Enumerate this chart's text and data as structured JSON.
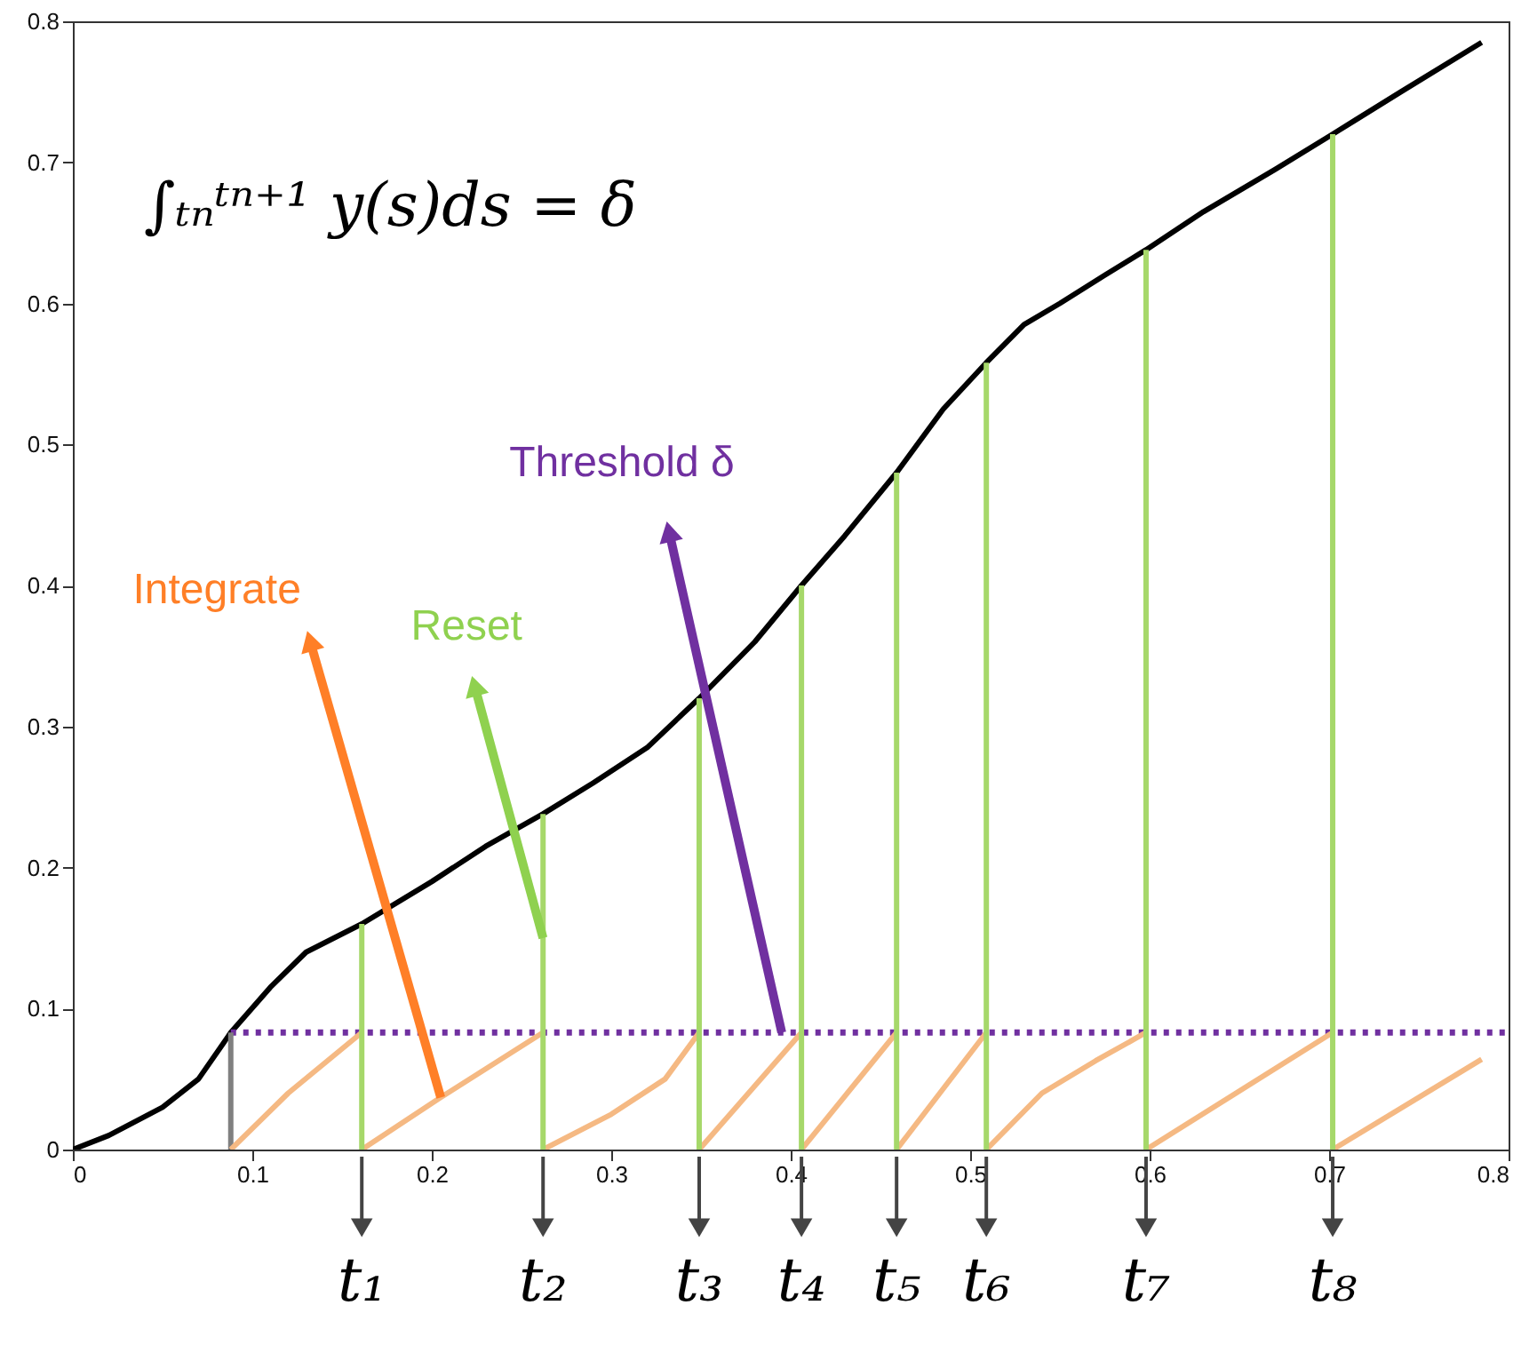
{
  "chart_data": {
    "type": "line",
    "xlim": [
      0,
      0.8
    ],
    "ylim": [
      0,
      0.8
    ],
    "xticks": [
      0,
      0.1,
      0.2,
      0.3,
      0.4,
      0.5,
      0.6,
      0.7,
      0.8
    ],
    "yticks": [
      0,
      0.1,
      0.2,
      0.3,
      0.4,
      0.5,
      0.6,
      0.7,
      0.8
    ],
    "grid": false,
    "marker": "none",
    "series": [
      {
        "color": "#000000",
        "x": [
          0,
          0.02,
          0.05,
          0.07,
          0.088,
          0.11,
          0.13,
          0.161,
          0.2,
          0.23,
          0.262,
          0.29,
          0.32,
          0.349,
          0.38,
          0.406,
          0.43,
          0.459,
          0.485,
          0.509,
          0.53,
          0.55,
          0.575,
          0.598,
          0.63,
          0.67,
          0.702,
          0.74,
          0.785
        ],
        "values": [
          0,
          0.01,
          0.03,
          0.05,
          0.083,
          0.115,
          0.14,
          0.16,
          0.19,
          0.215,
          0.238,
          0.26,
          0.285,
          0.32,
          0.36,
          0.4,
          0.435,
          0.48,
          0.525,
          0.558,
          0.585,
          0.6,
          0.62,
          0.638,
          0.665,
          0.695,
          0.72,
          0.75,
          0.785
        ]
      },
      {
        "color": "#7030a0",
        "line_style": "dotted",
        "x": [
          0.088,
          0.8
        ],
        "values": [
          0.083,
          0.083
        ]
      },
      {
        "color": "#808080",
        "x": [
          0.088,
          0.088
        ],
        "values": [
          0,
          0.083
        ]
      },
      {
        "color": "#f5b983",
        "x": [
          0.088,
          0.12,
          0.161
        ],
        "values": [
          0,
          0.04,
          0.083
        ]
      },
      {
        "color": "#f5b983",
        "x": [
          0.161,
          0.205,
          0.262
        ],
        "values": [
          0,
          0.037,
          0.083
        ]
      },
      {
        "color": "#f5b983",
        "x": [
          0.262,
          0.3,
          0.33,
          0.349
        ],
        "values": [
          0,
          0.025,
          0.05,
          0.083
        ]
      },
      {
        "color": "#f5b983",
        "x": [
          0.349,
          0.406
        ],
        "values": [
          0,
          0.083
        ]
      },
      {
        "color": "#f5b983",
        "x": [
          0.406,
          0.459
        ],
        "values": [
          0,
          0.083
        ]
      },
      {
        "color": "#f5b983",
        "x": [
          0.459,
          0.509
        ],
        "values": [
          0,
          0.083
        ]
      },
      {
        "color": "#f5b983",
        "x": [
          0.509,
          0.54,
          0.57,
          0.598
        ],
        "values": [
          0,
          0.04,
          0.063,
          0.083
        ]
      },
      {
        "color": "#f5b983",
        "x": [
          0.598,
          0.702
        ],
        "values": [
          0,
          0.083
        ]
      },
      {
        "color": "#f5b983",
        "x": [
          0.702,
          0.785
        ],
        "values": [
          0,
          0.064
        ]
      },
      {
        "color": "#a6d86a",
        "x": [
          0.161,
          0.161
        ],
        "values": [
          0,
          0.16
        ]
      },
      {
        "color": "#a6d86a",
        "x": [
          0.262,
          0.262
        ],
        "values": [
          0,
          0.238
        ]
      },
      {
        "color": "#a6d86a",
        "x": [
          0.349,
          0.349
        ],
        "values": [
          0,
          0.32
        ]
      },
      {
        "color": "#a6d86a",
        "x": [
          0.406,
          0.406
        ],
        "values": [
          0,
          0.4
        ]
      },
      {
        "color": "#a6d86a",
        "x": [
          0.459,
          0.459
        ],
        "values": [
          0,
          0.48
        ]
      },
      {
        "color": "#a6d86a",
        "x": [
          0.509,
          0.509
        ],
        "values": [
          0,
          0.558
        ]
      },
      {
        "color": "#a6d86a",
        "x": [
          0.598,
          0.598
        ],
        "values": [
          0,
          0.638
        ]
      },
      {
        "color": "#a6d86a",
        "x": [
          0.702,
          0.702
        ],
        "values": [
          0,
          0.72
        ]
      }
    ],
    "annotations": [
      "∫ₜₙᵗⁿ⁺¹ y(s)ds = δ",
      {
        "text": "Integrate",
        "x": 0.205,
        "y": 0.037
      },
      {
        "text": "Reset",
        "x": 0.262,
        "y": 0.15
      },
      {
        "text": "Threshold δ",
        "x": 0.395,
        "y": 0.083
      },
      {
        "text": "t₁",
        "x": 0.161
      },
      {
        "text": "t₂",
        "x": 0.262
      },
      {
        "text": "t₃",
        "x": 0.349
      },
      {
        "text": "t₄",
        "x": 0.406
      },
      {
        "text": "t₅",
        "x": 0.459
      },
      {
        "text": "t₆",
        "x": 0.509
      },
      {
        "text": "t₇",
        "x": 0.598
      },
      {
        "text": "t₈",
        "x": 0.702
      }
    ]
  }
}
